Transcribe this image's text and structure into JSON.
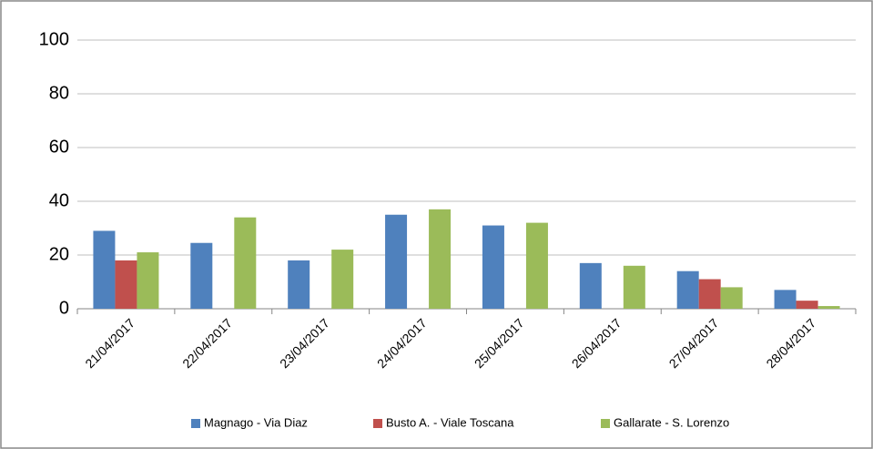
{
  "chart_data": {
    "type": "bar",
    "categories": [
      "21/04/2017",
      "22/04/2017",
      "23/04/2017",
      "24/04/2017",
      "25/04/2017",
      "26/04/2017",
      "27/04/2017",
      "28/04/2017"
    ],
    "series": [
      {
        "name": "Magnago - Via Diaz",
        "color": "#4f81bd",
        "values": [
          29,
          24.5,
          18,
          35,
          31,
          17,
          14,
          7
        ]
      },
      {
        "name": "Busto A. -  Viale Toscana",
        "color": "#c0504d",
        "values": [
          18,
          null,
          null,
          null,
          null,
          null,
          11,
          3
        ]
      },
      {
        "name": "Gallarate -  S. Lorenzo",
        "color": "#9bbb59",
        "values": [
          21,
          34,
          22,
          37,
          32,
          16,
          8,
          1
        ]
      }
    ],
    "ylim": [
      0,
      100
    ],
    "yticks": [
      0,
      20,
      40,
      60,
      80,
      100
    ],
    "grid": true,
    "legend": "bottom"
  }
}
